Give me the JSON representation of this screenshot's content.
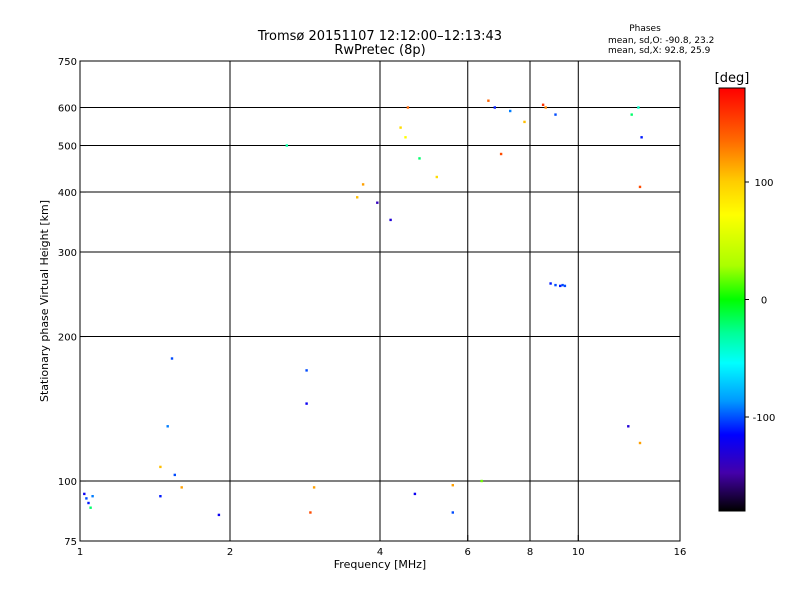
{
  "chart_data": {
    "type": "scatter",
    "title": "Tromsø 20151107 12:12:00–12:13:43",
    "subtitle": "RwPretec (8p)",
    "xlabel": "Frequency [MHz]",
    "ylabel": "Stationary phase Virtual Height [km]",
    "x_scale": "log",
    "y_scale": "log",
    "xlim": [
      1,
      16
    ],
    "ylim": [
      75,
      750
    ],
    "x_ticks": [
      1,
      2,
      4,
      6,
      8,
      10,
      16
    ],
    "x_tick_labels": [
      "1",
      "2",
      "4",
      "6",
      "8",
      "10",
      "16"
    ],
    "x_gridlines": [
      2,
      4,
      6,
      8,
      10
    ],
    "y_ticks": [
      75,
      100,
      200,
      300,
      400,
      500,
      600,
      750
    ],
    "y_tick_labels": [
      "75",
      "100",
      "200",
      "300",
      "400",
      "500",
      "600",
      "750"
    ],
    "y_gridlines": [
      100,
      200,
      300,
      400,
      500,
      600
    ],
    "grid": true,
    "phase_stats": {
      "heading": "Phases",
      "o_line": "mean, sd,O: -90.8, 23.2",
      "x_line": "mean, sd,X:  92.8, 25.9"
    },
    "colorbar": {
      "label": "[deg]",
      "range": [
        -180,
        180
      ],
      "ticks": [
        100,
        0,
        -100
      ],
      "tick_labels": [
        "100",
        "0",
        "-100"
      ],
      "colormap": "rainbow"
    },
    "points": [
      [
        1.03,
        92,
        -100
      ],
      [
        1.04,
        90,
        -110
      ],
      [
        1.05,
        88,
        -20
      ],
      [
        1.02,
        94,
        -120
      ],
      [
        1.06,
        93,
        -90
      ],
      [
        1.45,
        107,
        110
      ],
      [
        1.45,
        93,
        -110
      ],
      [
        1.53,
        180,
        -100
      ],
      [
        1.5,
        130,
        -90
      ],
      [
        1.55,
        103,
        -100
      ],
      [
        1.6,
        97,
        120
      ],
      [
        1.9,
        85,
        -120
      ],
      [
        2.6,
        500,
        -30
      ],
      [
        2.85,
        145,
        -120
      ],
      [
        2.85,
        170,
        -100
      ],
      [
        2.9,
        86,
        150
      ],
      [
        2.95,
        97,
        120
      ],
      [
        3.6,
        390,
        110
      ],
      [
        3.7,
        415,
        120
      ],
      [
        4.55,
        600,
        140
      ],
      [
        4.4,
        545,
        100
      ],
      [
        6.6,
        620,
        140
      ],
      [
        6.8,
        600,
        -110
      ],
      [
        7.0,
        480,
        150
      ],
      [
        7.3,
        590,
        -90
      ],
      [
        7.8,
        560,
        110
      ],
      [
        8.5,
        608,
        160
      ],
      [
        8.6,
        600,
        130
      ],
      [
        9.0,
        580,
        -100
      ],
      [
        12.8,
        580,
        -20
      ],
      [
        13.2,
        600,
        -40
      ],
      [
        13.3,
        410,
        150
      ],
      [
        13.4,
        520,
        -110
      ],
      [
        12.6,
        130,
        -130
      ],
      [
        13.3,
        120,
        120
      ],
      [
        9.0,
        256,
        -100
      ],
      [
        9.2,
        255,
        -110
      ],
      [
        9.3,
        256,
        -100
      ],
      [
        8.8,
        258,
        -110
      ],
      [
        9.4,
        255,
        -100
      ],
      [
        6.4,
        100,
        20
      ],
      [
        5.6,
        98,
        120
      ],
      [
        5.6,
        86,
        -100
      ],
      [
        4.7,
        94,
        -120
      ],
      [
        3.95,
        380,
        -140
      ],
      [
        4.2,
        350,
        -130
      ],
      [
        4.5,
        520,
        70
      ],
      [
        4.8,
        470,
        -20
      ],
      [
        5.2,
        430,
        100
      ]
    ]
  }
}
